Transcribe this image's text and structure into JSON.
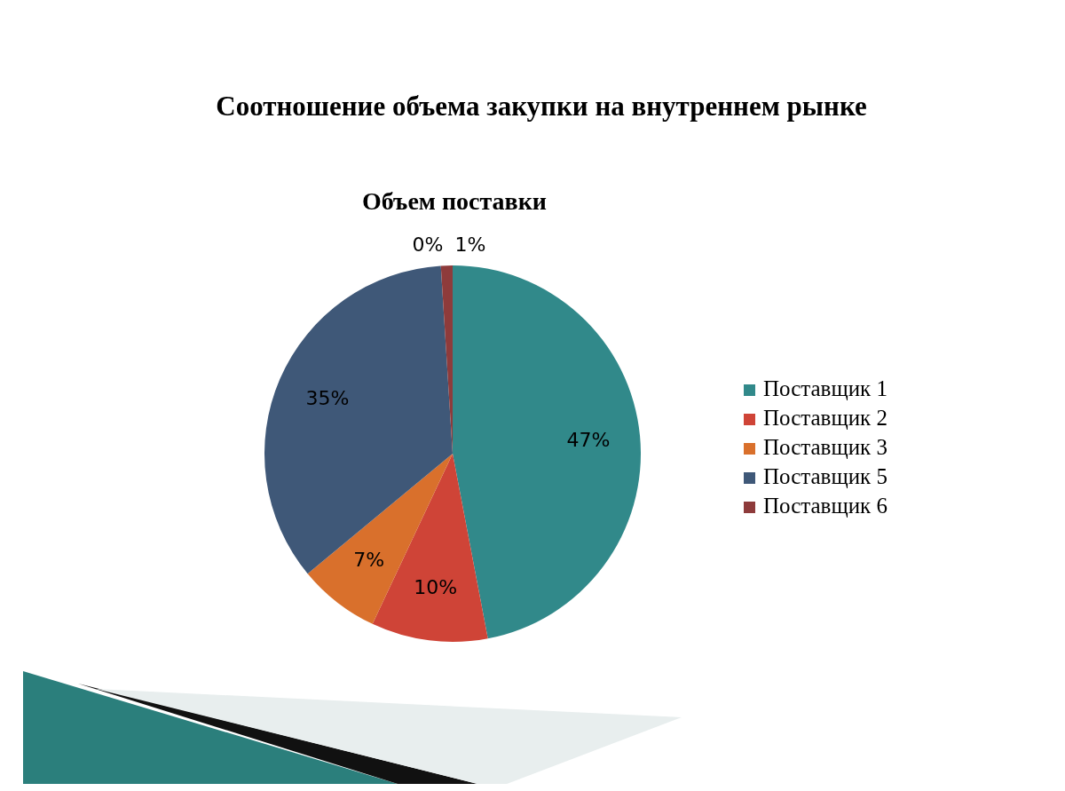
{
  "chart_data": {
    "type": "pie",
    "title": "Соотношение объема закупки на внутреннем рынке",
    "subtitle": "Объем поставки",
    "categories": [
      "Поставщик 1",
      "Поставщик 2",
      "Поставщик 3",
      "Поставщик 5",
      null,
      "Поставщик 6"
    ],
    "values": [
      47,
      10,
      7,
      35,
      0,
      1
    ],
    "value_labels": [
      "47%",
      "10%",
      "7%",
      "35%",
      "0%",
      "1%"
    ],
    "colors": [
      "#31898a",
      "#cf4437",
      "#d9702c",
      "#3f5878",
      "#6b3a4a",
      "#8e3b3b"
    ],
    "legend": "right"
  }
}
